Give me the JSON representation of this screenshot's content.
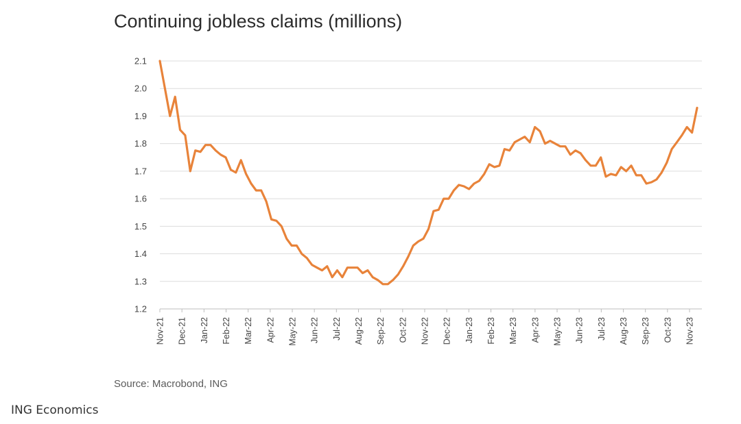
{
  "chart_data": {
    "type": "line",
    "title": "Continuing jobless claims (millions)",
    "source": "Source: Macrobond, ING",
    "ylim": [
      1.2,
      2.1
    ],
    "yticks": [
      "2.1",
      "2.0",
      "1.9",
      "1.8",
      "1.7",
      "1.6",
      "1.5",
      "1.4",
      "1.3",
      "1.2"
    ],
    "xticks": [
      "Nov-21",
      "Dec-21",
      "Jan-22",
      "Feb-22",
      "Mar-22",
      "Apr-22",
      "May-22",
      "Jun-22",
      "Jul-22",
      "Aug-22",
      "Sep-22",
      "Oct-22",
      "Nov-22",
      "Dec-22",
      "Jan-23",
      "Feb-23",
      "Mar-23",
      "Apr-23",
      "May-23",
      "Jun-23",
      "Jul-23",
      "Aug-23",
      "Sep-23",
      "Oct-23",
      "Nov-23"
    ],
    "grid": true,
    "series_color": "#e8833a",
    "series": [
      {
        "values": [
          2.1,
          2.0,
          1.9,
          1.97,
          1.85,
          1.83,
          1.7,
          1.775,
          1.77,
          1.795,
          1.795,
          1.775,
          1.76,
          1.75,
          1.705,
          1.695,
          1.74,
          1.69,
          1.655,
          1.63,
          1.63,
          1.59,
          1.525,
          1.52,
          1.5,
          1.455,
          1.43,
          1.43,
          1.4,
          1.385,
          1.36,
          1.35,
          1.34,
          1.355,
          1.315,
          1.34,
          1.315,
          1.35,
          1.35,
          1.35,
          1.33,
          1.34,
          1.315,
          1.305,
          1.29,
          1.29,
          1.305,
          1.325,
          1.355,
          1.39,
          1.43,
          1.445,
          1.455,
          1.49,
          1.555,
          1.56,
          1.6,
          1.6,
          1.63,
          1.65,
          1.645,
          1.635,
          1.655,
          1.665,
          1.69,
          1.725,
          1.715,
          1.72,
          1.78,
          1.775,
          1.805,
          1.815,
          1.825,
          1.805,
          1.86,
          1.845,
          1.8,
          1.81,
          1.8,
          1.79,
          1.79,
          1.76,
          1.775,
          1.765,
          1.74,
          1.72,
          1.72,
          1.75,
          1.68,
          1.69,
          1.685,
          1.715,
          1.7,
          1.72,
          1.685,
          1.685,
          1.655,
          1.66,
          1.67,
          1.695,
          1.73,
          1.78,
          1.805,
          1.83,
          1.86,
          1.84,
          1.93
        ]
      }
    ]
  },
  "footer": {
    "credit": "ING Economics"
  }
}
